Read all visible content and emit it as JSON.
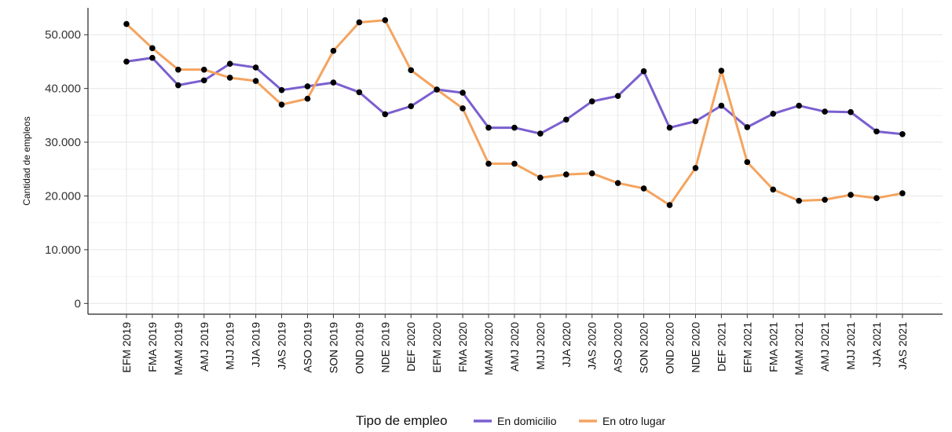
{
  "chart_data": {
    "type": "line",
    "title": "",
    "xlabel": "",
    "ylabel": "Cantidad de empleos",
    "ylim": [
      -2000,
      55000
    ],
    "yticks": [
      0,
      10000,
      20000,
      30000,
      40000,
      50000
    ],
    "ytick_labels": [
      "0",
      "10.000",
      "20.000",
      "30.000",
      "40.000",
      "50.000"
    ],
    "grid": true,
    "legend": {
      "title": "Tipo de empleo",
      "position": "bottom"
    },
    "categories": [
      "EFM 2019",
      "FMA 2019",
      "MAM 2019",
      "AMJ 2019",
      "MJJ 2019",
      "JJA 2019",
      "JAS 2019",
      "ASO 2019",
      "SON 2019",
      "OND 2019",
      "NDE 2019",
      "DEF 2020",
      "EFM 2020",
      "FMA 2020",
      "MAM 2020",
      "AMJ 2020",
      "MJJ 2020",
      "JJA 2020",
      "JAS 2020",
      "ASO 2020",
      "SON 2020",
      "OND 2020",
      "NDE 2020",
      "DEF 2021",
      "EFM 2021",
      "FMA 2021",
      "MAM 2021",
      "AMJ 2021",
      "MJJ 2021",
      "JJA 2021",
      "JAS 2021"
    ],
    "series": [
      {
        "name": "En domicilio",
        "color": "#7b5fcf",
        "values": [
          45000,
          45700,
          40600,
          41500,
          44600,
          43900,
          39700,
          40400,
          41100,
          39300,
          35200,
          36700,
          39800,
          39200,
          32700,
          32700,
          31600,
          34200,
          37600,
          38600,
          43200,
          32700,
          33900,
          36800,
          32800,
          35300,
          36800,
          35700,
          35600,
          32000,
          31500
        ]
      },
      {
        "name": "En otro lugar",
        "color": "#f4a460",
        "values": [
          52000,
          47500,
          43500,
          43500,
          42000,
          41400,
          37000,
          38100,
          47000,
          52300,
          52700,
          43400,
          39800,
          36300,
          26000,
          26000,
          23400,
          24000,
          24200,
          22400,
          21400,
          18300,
          25200,
          43300,
          26300,
          21200,
          19100,
          19300,
          20200,
          19600,
          20500
        ]
      }
    ]
  }
}
